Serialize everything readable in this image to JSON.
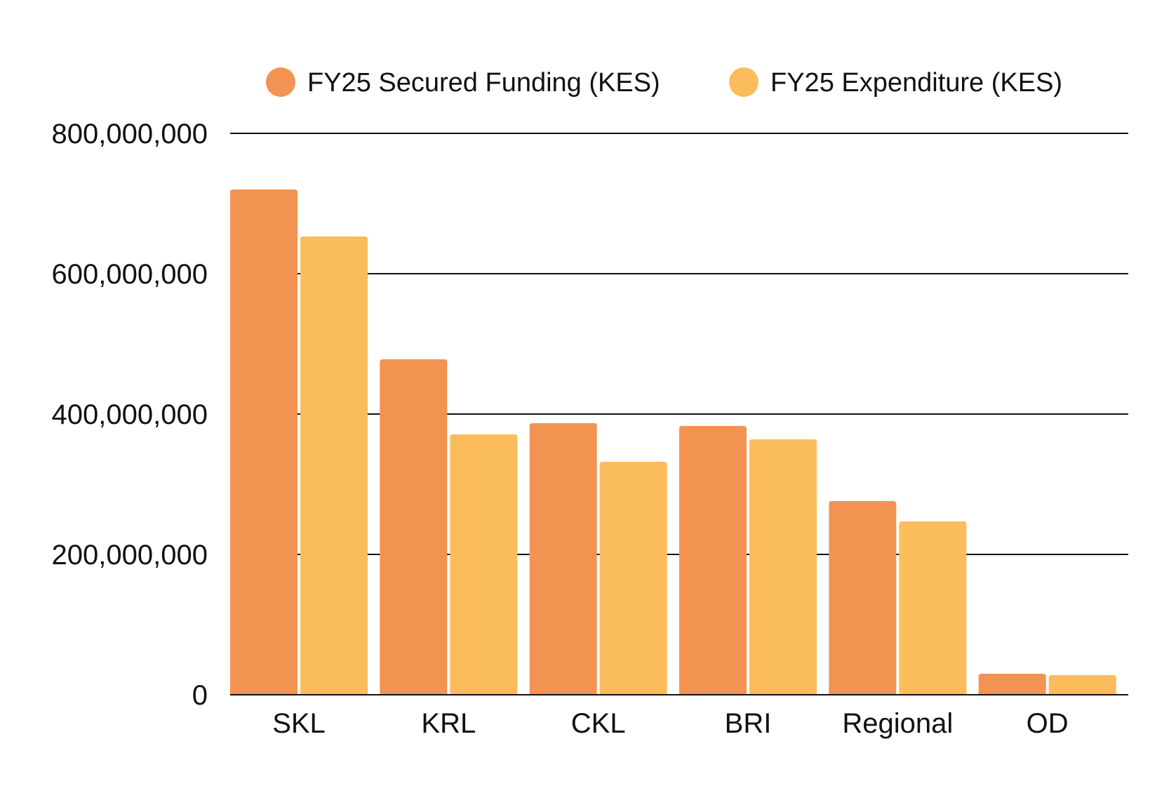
{
  "chart_data": {
    "type": "bar",
    "title": "",
    "xlabel": "",
    "ylabel": "",
    "ylim": [
      0,
      800000000
    ],
    "yticks": [
      0,
      200000000,
      400000000,
      600000000,
      800000000
    ],
    "ytick_labels": [
      "0",
      "200,000,000",
      "400,000,000",
      "600,000,000",
      "800,000,000"
    ],
    "categories": [
      "SKL",
      "KRL",
      "CKL",
      "BRI",
      "Regional",
      "OD"
    ],
    "legend_position": "top",
    "grid": true,
    "series": [
      {
        "name": "FY25 Secured Funding (KES)",
        "color": "#F39352",
        "values": [
          720000000,
          478000000,
          387000000,
          383000000,
          276000000,
          30000000
        ]
      },
      {
        "name": "FY25 Expenditure (KES)",
        "color": "#FBBC5C",
        "values": [
          653000000,
          371000000,
          332000000,
          364000000,
          247000000,
          28000000
        ]
      }
    ]
  }
}
